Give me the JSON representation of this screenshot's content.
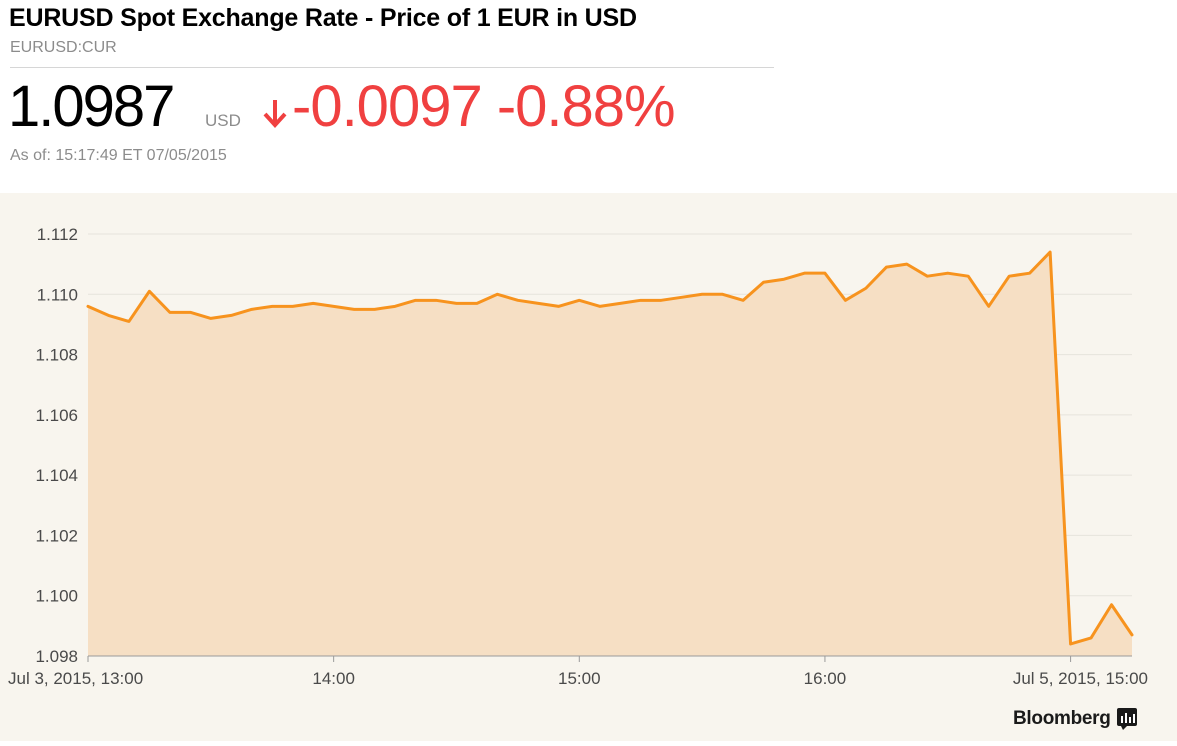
{
  "header": {
    "title": "EURUSD Spot Exchange Rate - Price of 1 EUR in USD",
    "ticker": "EURUSD:CUR",
    "price": "1.0987",
    "currency": "USD",
    "change": "-0.0097 -0.88%",
    "as_of": "As of: 15:17:49 ET 07/05/2015"
  },
  "colors": {
    "line": "#f7931e",
    "fill": "#f6dfc4",
    "negative": "#f04040",
    "background": "#f8f5ee",
    "grid": "#e6e3dc"
  },
  "branding": {
    "logo_text": "Bloomberg",
    "icon": "bloomberg-terminal-icon"
  },
  "chart_data": {
    "type": "area",
    "title": "",
    "xlabel": "",
    "ylabel": "",
    "ylim": [
      1.098,
      1.112
    ],
    "yticks": [
      1.112,
      1.11,
      1.108,
      1.106,
      1.104,
      1.102,
      1.1,
      1.098
    ],
    "ytick_labels": [
      "1.112",
      "1.110",
      "1.108",
      "1.106",
      "1.104",
      "1.102",
      "1.100",
      "1.098"
    ],
    "xtick_labels": [
      "Jul 3, 2015, 13:00",
      "14:00",
      "15:00",
      "16:00",
      "Jul 5, 2015, 15:00"
    ],
    "xtick_index": [
      0,
      12,
      24,
      36,
      48
    ],
    "grid": true,
    "legend": "none",
    "series": [
      {
        "values": [
          1.1096,
          1.1093,
          1.1091,
          1.1101,
          1.1094,
          1.1094,
          1.1092,
          1.1093,
          1.1095,
          1.1096,
          1.1096,
          1.1097,
          1.1096,
          1.1095,
          1.1095,
          1.1096,
          1.1098,
          1.1098,
          1.1097,
          1.1097,
          1.11,
          1.1098,
          1.1097,
          1.1096,
          1.1098,
          1.1096,
          1.1097,
          1.1098,
          1.1098,
          1.1099,
          1.11,
          1.11,
          1.1098,
          1.1104,
          1.1105,
          1.1107,
          1.1107,
          1.1098,
          1.1102,
          1.1109,
          1.111,
          1.1106,
          1.1107,
          1.1106,
          1.1096,
          1.1106,
          1.1107,
          1.1114,
          1.0984,
          1.0986,
          1.0997,
          1.0987
        ]
      }
    ]
  }
}
